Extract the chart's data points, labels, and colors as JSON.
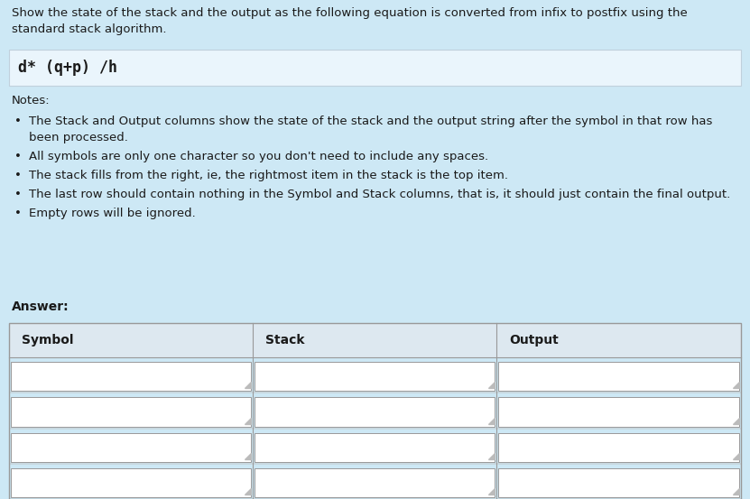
{
  "title_text_line1": "Show the state of the stack and the output as the following equation is converted from infix to postfix using the",
  "title_text_line2": "standard stack algorithm.",
  "equation": "d* (q+p) /h",
  "notes_title": "Notes:",
  "notes": [
    [
      "The Stack and Output columns show the state of the stack and the output string after the symbol in that row has",
      "been processed."
    ],
    [
      "All symbols are only one character so you don't need to include any spaces."
    ],
    [
      "The stack fills from the right, ie, the rightmost item in the stack is the top item."
    ],
    [
      "The last row should contain nothing in the Symbol and Stack columns, that is, it should just contain the final output."
    ],
    [
      "Empty rows will be ignored."
    ]
  ],
  "answer_label": "Answer:",
  "col_headers": [
    "Symbol",
    "Stack",
    "Output"
  ],
  "num_rows": 4,
  "bg_color": "#cde8f5",
  "equation_bg": "#eaf5fc",
  "table_header_bg": "#dde8f0",
  "table_row_bg": "#ffffff",
  "table_sep_color": "#c8d8e0",
  "table_border_color": "#999999",
  "text_color": "#1a1a1a",
  "equation_box_border": "#c0d0dc",
  "title_fontsize": 9.5,
  "notes_fontsize": 9.5,
  "equation_fontsize": 12,
  "answer_fontsize": 10,
  "header_fontsize": 10
}
